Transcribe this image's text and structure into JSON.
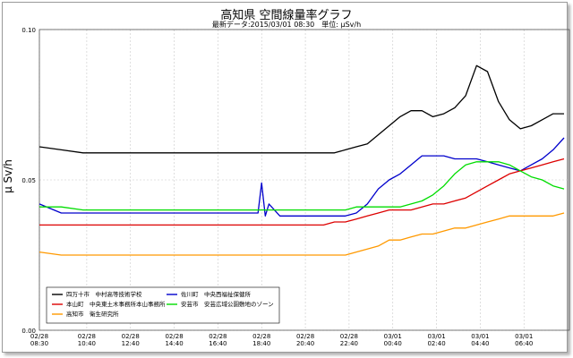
{
  "chart_data": {
    "type": "line",
    "title": "高知県 空間線量率グラフ",
    "subtitle": "最新データ:2015/03/01 08:30　単位: μSv/h",
    "ylabel": "μ Sv/h",
    "ylim": [
      0.0,
      0.1
    ],
    "yticks": [
      "0.00",
      "0.05",
      "0.10"
    ],
    "grid": true,
    "legend_position": "bottom-left",
    "xticks": [
      {
        "date": "02/28",
        "time": "08:30"
      },
      {
        "date": "02/28",
        "time": "10:40"
      },
      {
        "date": "02/28",
        "time": "12:40"
      },
      {
        "date": "02/28",
        "time": "14:40"
      },
      {
        "date": "02/28",
        "time": "16:40"
      },
      {
        "date": "02/28",
        "time": "18:40"
      },
      {
        "date": "02/28",
        "time": "20:40"
      },
      {
        "date": "02/28",
        "time": "22:40"
      },
      {
        "date": "03/01",
        "time": "00:40"
      },
      {
        "date": "03/01",
        "time": "02:40"
      },
      {
        "date": "03/01",
        "time": "04:40"
      },
      {
        "date": "03/01",
        "time": "06:40"
      }
    ],
    "x": [
      "02/28 08:30",
      "02/28 09:30",
      "02/28 10:30",
      "02/28 11:30",
      "02/28 12:30",
      "02/28 13:30",
      "02/28 14:30",
      "02/28 15:30",
      "02/28 16:30",
      "02/28 17:30",
      "02/28 18:00",
      "02/28 18:30",
      "02/28 18:40",
      "02/28 18:50",
      "02/28 19:00",
      "02/28 19:30",
      "02/28 20:30",
      "02/28 21:30",
      "02/28 22:00",
      "02/28 22:30",
      "02/28 23:00",
      "02/28 23:30",
      "03/01 00:00",
      "03/01 00:30",
      "03/01 01:00",
      "03/01 01:30",
      "03/01 02:00",
      "03/01 02:30",
      "03/01 03:00",
      "03/01 03:30",
      "03/01 04:00",
      "03/01 04:30",
      "03/01 05:00",
      "03/01 05:30",
      "03/01 06:00",
      "03/01 06:30",
      "03/01 07:00",
      "03/01 07:30",
      "03/01 08:00",
      "03/01 08:30"
    ],
    "series": [
      {
        "name": "四万十市　中村高等技術学校",
        "color": "#000000",
        "values": [
          0.061,
          0.06,
          0.059,
          0.059,
          0.059,
          0.059,
          0.059,
          0.059,
          0.059,
          0.059,
          0.059,
          0.059,
          0.059,
          0.059,
          0.059,
          0.059,
          0.059,
          0.059,
          0.059,
          0.06,
          0.061,
          0.062,
          0.065,
          0.068,
          0.071,
          0.073,
          0.073,
          0.071,
          0.072,
          0.074,
          0.078,
          0.088,
          0.086,
          0.076,
          0.07,
          0.067,
          0.068,
          0.07,
          0.072,
          0.072
        ]
      },
      {
        "name": "佐川町　中央西福祉保健所",
        "color": "#0000cc",
        "values": [
          0.042,
          0.039,
          0.039,
          0.039,
          0.039,
          0.039,
          0.039,
          0.039,
          0.039,
          0.039,
          0.039,
          0.039,
          0.049,
          0.038,
          0.042,
          0.038,
          0.038,
          0.038,
          0.038,
          0.038,
          0.039,
          0.042,
          0.047,
          0.05,
          0.052,
          0.055,
          0.058,
          0.058,
          0.058,
          0.057,
          0.057,
          0.057,
          0.056,
          0.055,
          0.054,
          0.053,
          0.055,
          0.057,
          0.06,
          0.064
        ]
      },
      {
        "name": "本山町　中央東土木事務所本山事務所",
        "color": "#dd0000",
        "values": [
          0.035,
          0.035,
          0.035,
          0.035,
          0.035,
          0.035,
          0.035,
          0.035,
          0.035,
          0.035,
          0.035,
          0.035,
          0.035,
          0.035,
          0.035,
          0.035,
          0.035,
          0.035,
          0.036,
          0.036,
          0.037,
          0.038,
          0.039,
          0.04,
          0.04,
          0.04,
          0.041,
          0.042,
          0.042,
          0.043,
          0.044,
          0.046,
          0.048,
          0.05,
          0.052,
          0.053,
          0.054,
          0.055,
          0.056,
          0.057
        ]
      },
      {
        "name": "安芸市　安芸広域公園敷地のゾーン",
        "color": "#00dd00",
        "values": [
          0.041,
          0.041,
          0.04,
          0.04,
          0.04,
          0.04,
          0.04,
          0.04,
          0.04,
          0.04,
          0.04,
          0.04,
          0.04,
          0.04,
          0.04,
          0.04,
          0.04,
          0.04,
          0.04,
          0.04,
          0.041,
          0.041,
          0.041,
          0.041,
          0.041,
          0.042,
          0.043,
          0.045,
          0.048,
          0.052,
          0.055,
          0.056,
          0.056,
          0.056,
          0.055,
          0.053,
          0.051,
          0.05,
          0.048,
          0.047
        ]
      },
      {
        "name": "高知市　衛生研究所",
        "color": "#ff9900",
        "values": [
          0.026,
          0.025,
          0.025,
          0.025,
          0.025,
          0.025,
          0.025,
          0.025,
          0.025,
          0.025,
          0.025,
          0.025,
          0.025,
          0.025,
          0.025,
          0.025,
          0.025,
          0.025,
          0.025,
          0.025,
          0.026,
          0.027,
          0.028,
          0.03,
          0.03,
          0.031,
          0.032,
          0.032,
          0.033,
          0.034,
          0.034,
          0.035,
          0.036,
          0.037,
          0.038,
          0.038,
          0.038,
          0.038,
          0.038,
          0.039
        ]
      }
    ]
  }
}
